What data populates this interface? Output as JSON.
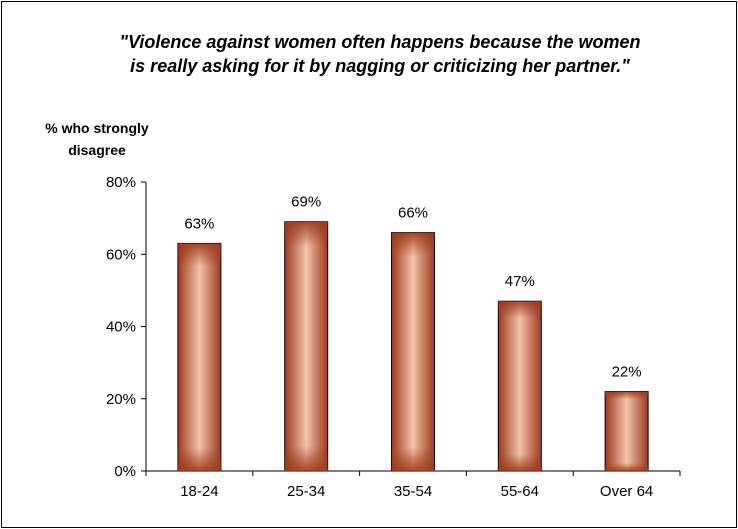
{
  "chart_data": {
    "type": "bar",
    "title_lines": [
      "\"Violence against women often happens because the women",
      "is really asking for it by nagging or criticizing her partner.\""
    ],
    "ylabel_lines": [
      "% who strongly",
      "disagree"
    ],
    "xlabel": "",
    "categories": [
      "18-24",
      "25-34",
      "35-54",
      "55-64",
      "Over 64"
    ],
    "values": [
      63,
      69,
      66,
      47,
      22
    ],
    "data_labels": [
      "63%",
      "69%",
      "66%",
      "47%",
      "22%"
    ],
    "ylim": [
      0,
      80
    ],
    "yticks": [
      0,
      20,
      40,
      60,
      80
    ],
    "ytick_labels": [
      "0%",
      "20%",
      "40%",
      "60%",
      "80%"
    ],
    "grid": false,
    "legend": "none",
    "bar_color": "#9c3a1e",
    "bar_highlight": "#f2c3a8"
  }
}
